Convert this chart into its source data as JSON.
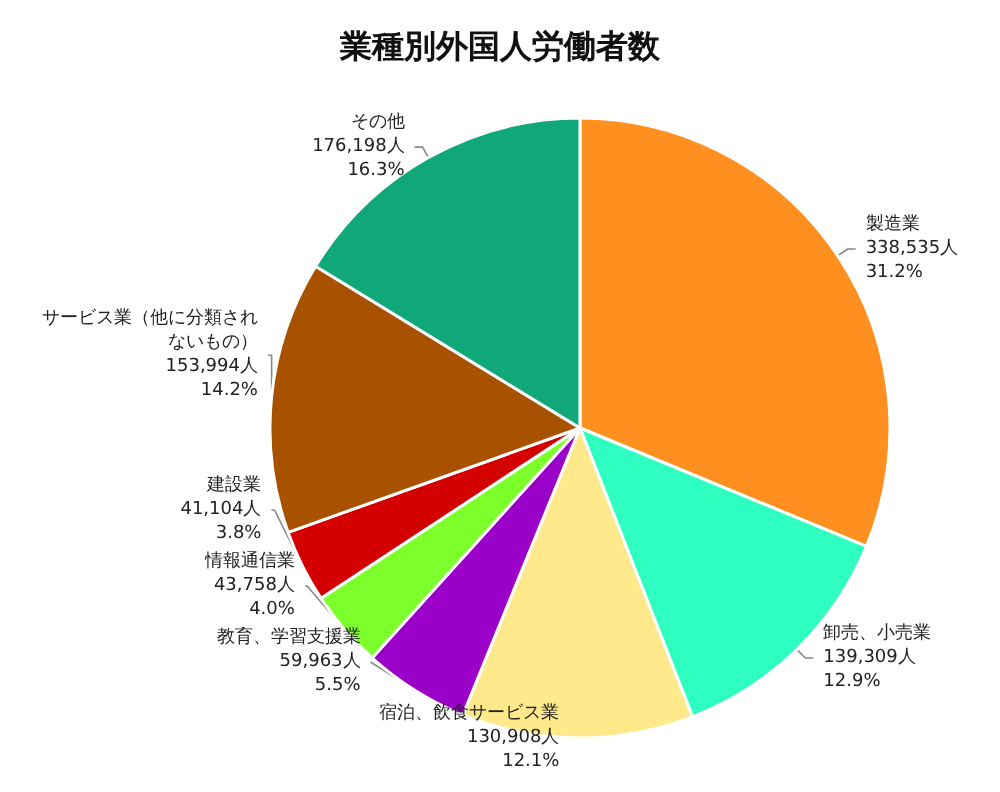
{
  "chart_data": {
    "type": "pie",
    "title": "業種別外国人労働者数",
    "categories": [
      "製造業",
      "卸売、小売業",
      "宿泊、飲食サービス業",
      "教育、学習支援業",
      "情報通信業",
      "建設業",
      "サービス業（他に分類されないもの）",
      "その他"
    ],
    "values": [
      338535,
      139309,
      130908,
      59963,
      43758,
      41104,
      153994,
      176198
    ],
    "value_labels": [
      "338,535人\n31.2%",
      "139,309人\n12.9%",
      "130,908人\n12.1%",
      "59,963人\n5.5%",
      "43,758人\n4.0%",
      "41,104人\n3.8%",
      "153,994人\n14.2%",
      "176,198人\n16.3%"
    ],
    "colors": [
      "#ff9020",
      "#2effc0",
      "#ffe98a",
      "#9b00c8",
      "#7cff2a",
      "#d40000",
      "#a85200",
      "#10a878"
    ],
    "legend": false
  }
}
